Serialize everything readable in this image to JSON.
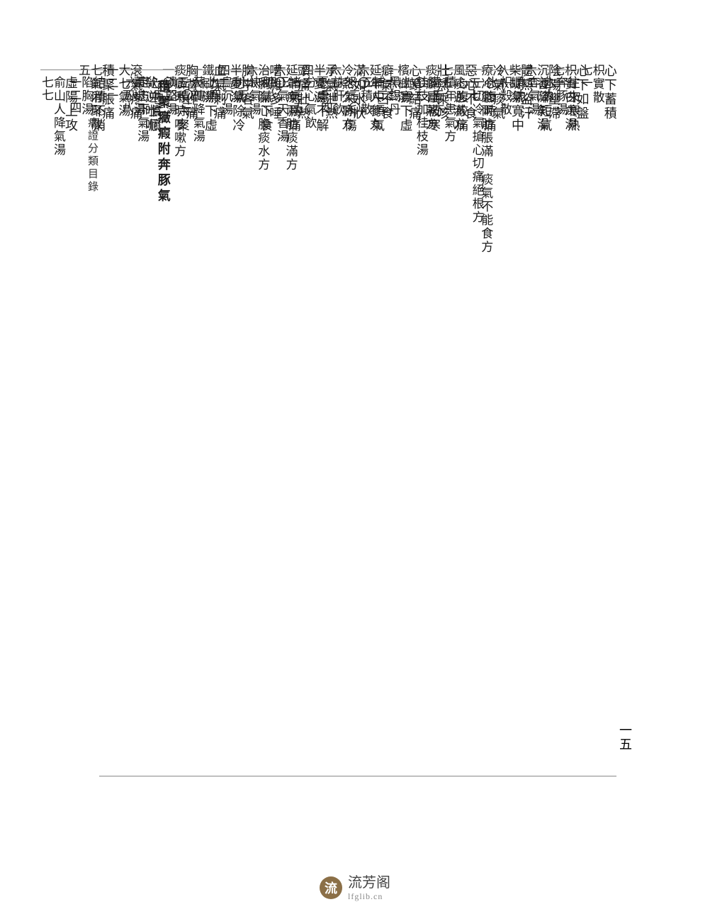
{
  "header_label": "病證分類目錄",
  "footer_page": "一五",
  "watermark": {
    "icon": "流",
    "cn": "流芳阁",
    "en": "lfglib.cn"
  },
  "columns": [
    {
      "top": "心下蓄積",
      "mid": "枳實散",
      "bottom": "七一",
      "double": true,
      "top2": "往來寒熱",
      "mid2": "奔豚湯",
      "bottom2": "六九"
    },
    {
      "top": "心下如盤",
      "mid": "枳實白朮湯",
      "bottom": "七一",
      "double": true,
      "top2": "迫滿短氣",
      "mid2": "奔氣湯",
      "bottom2": "六九"
    },
    {
      "top": "陰陽壅滯",
      "mid": "沉香降氣湯",
      "bottom": "六二",
      "double": true,
      "top2": "順氣寬中",
      "mid2": "枳殼散",
      "bottom2": "七一"
    },
    {
      "top": "體熱盜汗",
      "mid": "柴胡湯",
      "bottom": "八八",
      "double": true,
      "top2": "心腹時痛",
      "mid2": "一切冷氣搶心切痛絕根方",
      "bottom2": "一"
    },
    {
      "top": "冷氣痰氣",
      "mid": "療冷氣兩肋脹滿\n痰氣不能食方",
      "bottom": "一五七",
      "double": true,
      "top2": "心腹絞痛",
      "mid2": "積年患氣方",
      "bottom2": "一五六"
    },
    {
      "top": "惡心不食",
      "mid": "風痰逆滿方",
      "bottom": "七五",
      "double": true,
      "top2": "臟虛被寒",
      "mid2": "桂枝加桂枝湯",
      "bottom2": "八一"
    },
    {
      "top": "壯熱乘咳",
      "mid": "痰癖骨蒸方",
      "bottom": "一〇二",
      "double": true,
      "top2": "上實下虛",
      "mid2": "黑錫丹",
      "bottom2": "一二三"
    },
    {
      "top": "心頭結痛",
      "mid": "檳榔湯",
      "bottom": "一六二",
      "double": true,
      "top2": "輔中順氣",
      "mid2": "五積散",
      "bottom2": "一三〇"
    },
    {
      "top": "癖氣不食",
      "mid": "延年人參丸",
      "bottom": "六〇",
      "double": true,
      "top2": "怒氣所傷",
      "mid2": "誅肝飲",
      "bottom2": "一三四"
    },
    {
      "top": "滿如水狀",
      "mid": "冷熱久癖方",
      "bottom": "六五",
      "double": true,
      "top2": "憂慮不解",
      "mid2": "分心氣飲",
      "bottom2": "一三五"
    },
    {
      "top": "承氣泄熱",
      "mid": "半夏湯",
      "bottom": "四三",
      "double": true,
      "top2": "諸氣爲痛",
      "mid2": "正氣天香湯",
      "bottom2": "四八"
    },
    {
      "top": "頭痛壯熱",
      "mid": "延年療兩肋痰滿方",
      "bottom": "六〇",
      "double": true,
      "top2": "利氣下食",
      "mid2": "快氣湯",
      "bottom2": "六五"
    },
    {
      "top": "嘈雜多唾",
      "mid": "治胸膈心腹痰水方",
      "bottom": "六六",
      "double": true,
      "top2": "利氣除冷",
      "mid2": "烏沉湯",
      "bottom2": "九四"
    },
    {
      "top": "胸中客氣",
      "mid": "半夏湯",
      "bottom": "四二",
      "double": true,
      "top2": "上熱下虛",
      "mid2": "蘇傳降氣湯",
      "bottom2": "一〇三"
    },
    {
      "top": "血氣刺痛",
      "mid": "鐵刷湯",
      "bottom": "一六四",
      "double": true,
      "top2": "五積六聚",
      "mid2": "潰堅湯",
      "bottom2": "一五三"
    },
    {
      "top": "胸背作痛",
      "mid": "痰癖時時咳嗽方",
      "bottom": "一〇二",
      "double": true,
      "top2": "心中憤憤",
      "mid2": "定志下氣湯",
      "bottom2": "六八"
    },
    {
      "top": "　積聚癥瘕附奔豚氣",
      "mid": "",
      "bottom": "",
      "double": true,
      "section": true,
      "top2": "欷逆吐呃",
      "mid2": "薑椒湯",
      "bottom2": "一五八"
    },
    {
      "top": "滾氣疼痛",
      "mid": "大七氣湯",
      "bottom": "一二一",
      "double": true,
      "top2": "結積不消",
      "mid2": "陷胸湯",
      "bottom2": "一二四"
    },
    {
      "top": "積聚脹痛",
      "mid": "七氣消聚散",
      "bottom": "五",
      "double": true,
      "top2": "虛陽上攻",
      "mid2": "俞山人降氣湯",
      "bottom2": "七七"
    }
  ]
}
